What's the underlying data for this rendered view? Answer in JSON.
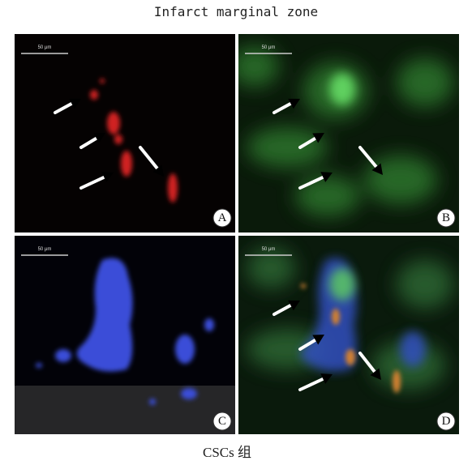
{
  "header": {
    "title": "Infarct marginal zone"
  },
  "panels": [
    {
      "label": "A",
      "scale_bar": "50 μm"
    },
    {
      "label": "B",
      "scale_bar": "50 μm"
    },
    {
      "label": "C",
      "scale_bar": "50 μm"
    },
    {
      "label": "D",
      "scale_bar": "50 μm"
    }
  ],
  "caption": "CSCs 组"
}
